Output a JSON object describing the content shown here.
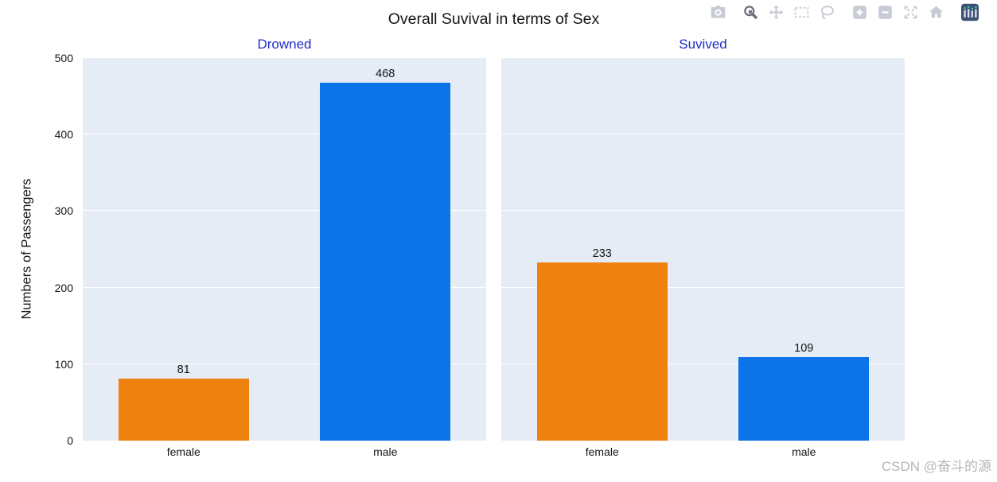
{
  "page": {
    "watermark": "CSDN @奋斗的源"
  },
  "chart_data": {
    "type": "bar",
    "title": "Overall Suvival in terms of Sex",
    "ylabel": "Numbers of Passengers",
    "ylim": [
      0,
      500
    ],
    "yticks": [
      0,
      100,
      200,
      300,
      400,
      500
    ],
    "categories": [
      "female",
      "male"
    ],
    "subplots": [
      {
        "title": "Drowned",
        "values": [
          81,
          468
        ]
      },
      {
        "title": "Suvived",
        "values": [
          233,
          109
        ]
      }
    ],
    "bar_colors": {
      "female": "#ef810e",
      "male": "#0b74e6"
    },
    "value_labels": "outside",
    "grid": "on",
    "legend": "none",
    "plot_bg": "#e5ecf6",
    "grid_color": "#ffffff",
    "subtitle_color": "#1f2ccc",
    "text_color": "#161616"
  },
  "modebar": {
    "icon_color": "#c6cbd4",
    "icon_active_color": "#6a6f7a",
    "logo_bg": "#3f4f75",
    "logo_bar_color": "#dfe3ec",
    "logo_dot_color": "#3fbf9e",
    "watermark_color": "#b4b6ba",
    "buttons": [
      {
        "name": "download-plot-icon",
        "label": "download plot as png",
        "active": false
      },
      {
        "name": "zoom-icon",
        "label": "zoom",
        "active": true
      },
      {
        "name": "pan-icon",
        "label": "pan",
        "active": false
      },
      {
        "name": "box-select-icon",
        "label": "box select",
        "active": false
      },
      {
        "name": "lasso-select-icon",
        "label": "lasso select",
        "active": false
      },
      {
        "name": "zoom-in-icon",
        "label": "zoom in",
        "active": false
      },
      {
        "name": "zoom-out-icon",
        "label": "zoom out",
        "active": false
      },
      {
        "name": "autoscale-icon",
        "label": "autoscale",
        "active": false
      },
      {
        "name": "reset-axes-icon",
        "label": "reset axes",
        "active": false
      },
      {
        "name": "plotly-logo-icon",
        "label": "produced with plotly",
        "active": false
      }
    ]
  }
}
